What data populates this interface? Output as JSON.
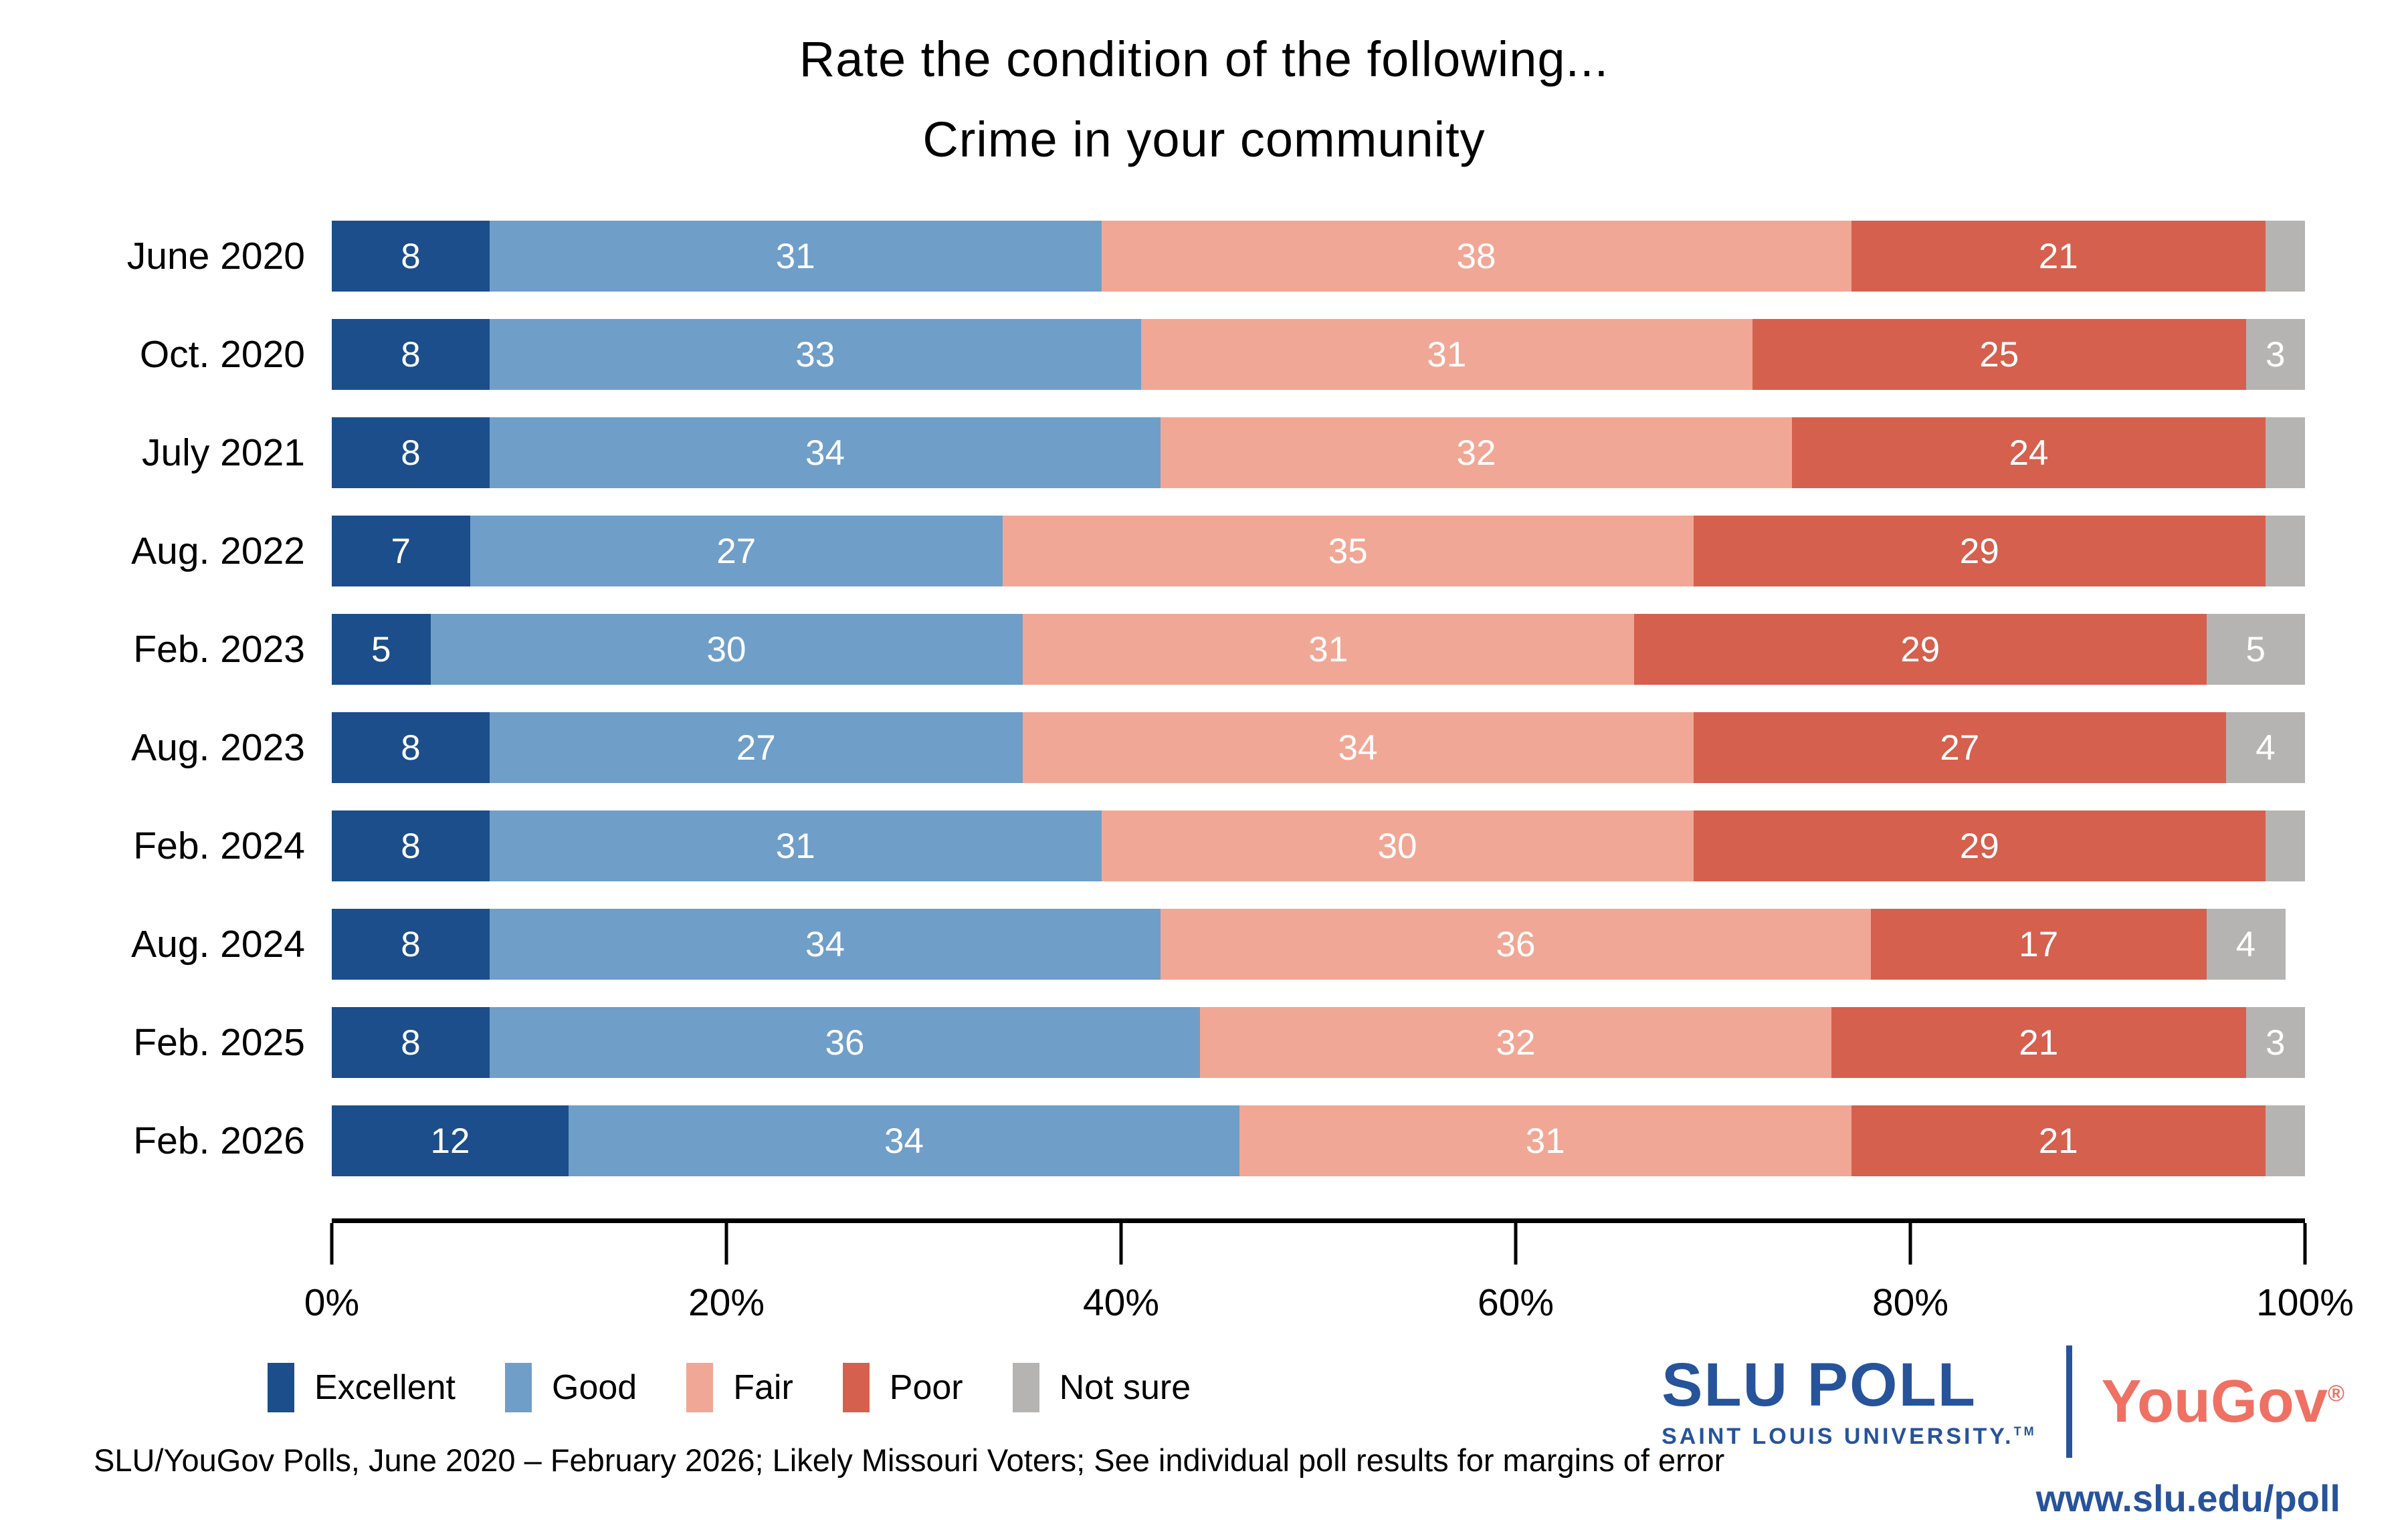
{
  "title": {
    "line1": "Rate the condition of the following...",
    "line2": "Crime in your community"
  },
  "chart_data": {
    "type": "bar",
    "orientation": "horizontal",
    "stacked": true,
    "title": "Rate the condition of the following... Crime in your community",
    "categories": [
      "June 2020",
      "Oct. 2020",
      "July 2021",
      "Aug. 2022",
      "Feb. 2023",
      "Aug. 2023",
      "Feb. 2024",
      "Aug. 2024",
      "Feb. 2025",
      "Feb. 2026"
    ],
    "series": [
      {
        "name": "Excellent",
        "color": "#1b4e8a",
        "values": [
          8,
          8,
          8,
          7,
          5,
          8,
          8,
          8,
          8,
          12
        ]
      },
      {
        "name": "Good",
        "color": "#6f9ec9",
        "values": [
          31,
          33,
          34,
          27,
          30,
          27,
          31,
          34,
          36,
          34
        ]
      },
      {
        "name": "Fair",
        "color": "#f1a795",
        "values": [
          38,
          31,
          32,
          35,
          31,
          34,
          30,
          36,
          32,
          31
        ]
      },
      {
        "name": "Poor",
        "color": "#d5604e",
        "values": [
          21,
          25,
          24,
          29,
          29,
          27,
          29,
          17,
          21,
          21
        ]
      },
      {
        "name": "Not sure",
        "color": "#b5b4b3",
        "values": [
          2,
          3,
          2,
          2,
          5,
          4,
          2,
          4,
          3,
          2
        ]
      }
    ],
    "xlim": [
      0,
      100
    ],
    "x_ticks": [
      "0%",
      "20%",
      "40%",
      "60%",
      "80%",
      "100%"
    ],
    "grid": false,
    "legend_position": "bottom-left",
    "label_min_value_shown": 3,
    "bar_label_color": "#ffffff"
  },
  "footer": {
    "source_note": "SLU/YouGov Polls, June 2020 – February 2026; Likely Missouri Voters; See individual poll results for margins of error"
  },
  "branding": {
    "slu_poll": "SLU POLL",
    "slu_sub": "SAINT LOUIS UNIVERSITY.",
    "slu_tm": "TM",
    "yougov": "YouGov",
    "yougov_reg": "®",
    "url": "www.slu.edu/poll",
    "slu_blue": "#27539b",
    "yougov_red": "#ee7164"
  }
}
